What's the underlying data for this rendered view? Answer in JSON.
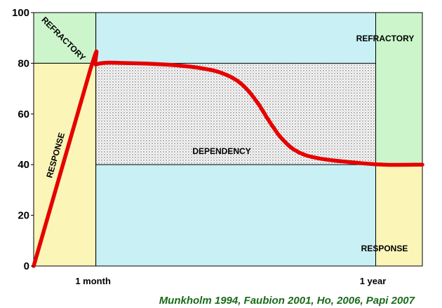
{
  "chart_data": {
    "type": "line",
    "ylim": [
      0,
      100
    ],
    "yticks": [
      0,
      20,
      40,
      60,
      80,
      100
    ],
    "x_range": [
      0,
      15
    ],
    "xticks": [
      {
        "x": 2.4,
        "label": "1 month"
      },
      {
        "x": 13.2,
        "label": "1 year"
      }
    ],
    "grid": false,
    "regions": [
      {
        "name": "refractory-early",
        "label": "REFRACTORY",
        "x": [
          0,
          2.4
        ],
        "y": [
          80,
          100
        ],
        "color": "#ccf5cc"
      },
      {
        "name": "response-early",
        "label": "RESPONSE",
        "x": [
          0,
          2.4
        ],
        "y": [
          0,
          80
        ],
        "color": "#fbf5b8"
      },
      {
        "name": "middle",
        "label": "",
        "x": [
          2.4,
          13.2
        ],
        "y": [
          0,
          100
        ],
        "color": "#c9f0f5"
      },
      {
        "name": "dependency",
        "label": "DEPENDENCY",
        "x": [
          2.4,
          13.2
        ],
        "y": [
          40,
          80
        ],
        "color": "#f5f5f5",
        "pattern": "dots"
      },
      {
        "name": "refractory-late",
        "label": "REFRACTORY",
        "x": [
          13.2,
          15
        ],
        "y": [
          40,
          100
        ],
        "color": "#ccf5cc"
      },
      {
        "name": "response-late",
        "label": "RESPONSE",
        "x": [
          13.2,
          15
        ],
        "y": [
          0,
          40
        ],
        "color": "#fbf5b8"
      }
    ],
    "series": [
      {
        "color": "#e60000",
        "points": [
          [
            0,
            0
          ],
          [
            2.2,
            78
          ],
          [
            2.4,
            79.5
          ],
          [
            2.8,
            80.2
          ],
          [
            3.5,
            80.1
          ],
          [
            4.5,
            79.8
          ],
          [
            5.5,
            79.2
          ],
          [
            6.5,
            78
          ],
          [
            7.3,
            76
          ],
          [
            8,
            72
          ],
          [
            8.6,
            65
          ],
          [
            9.1,
            57
          ],
          [
            9.6,
            50
          ],
          [
            10.2,
            45
          ],
          [
            11,
            42.5
          ],
          [
            12.2,
            41
          ],
          [
            13.5,
            40
          ],
          [
            15,
            40
          ]
        ]
      }
    ]
  },
  "citation": "Munkholm 1994, Faubion 2001, Ho, 2006, Papi 2007"
}
